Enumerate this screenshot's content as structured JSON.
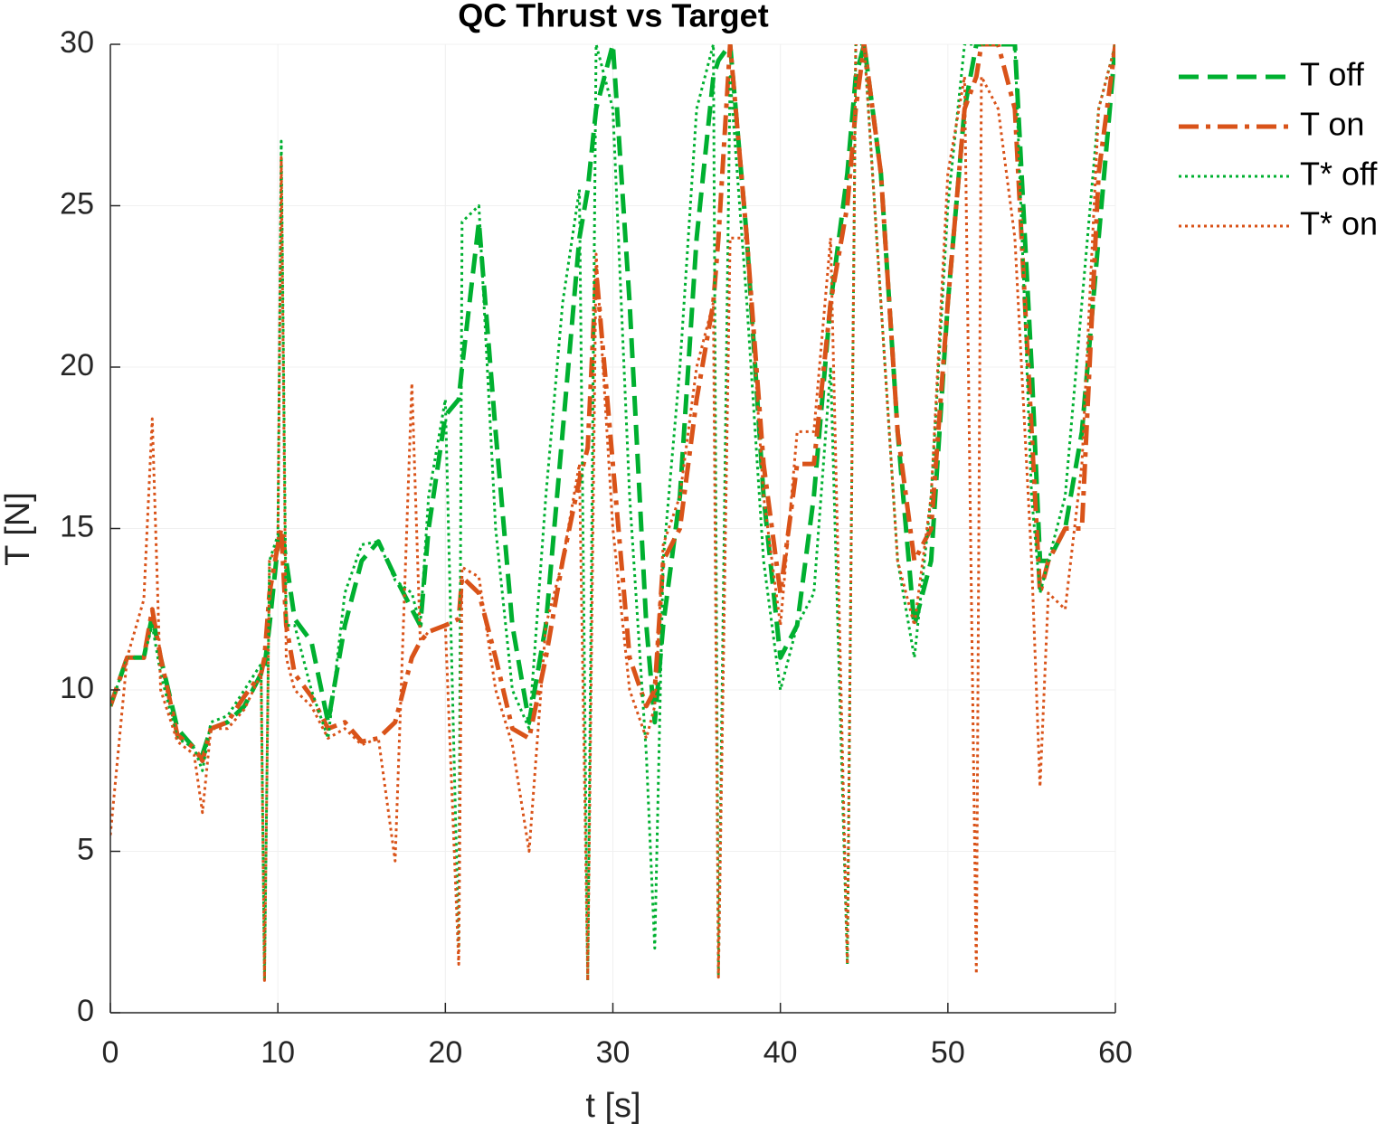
{
  "chart_data": {
    "type": "line",
    "title": "QC Thrust vs Target",
    "x_label": "t [s]",
    "y_label": "T [N]",
    "x": [
      0,
      1,
      2,
      2.5,
      3,
      4,
      5,
      5.5,
      6,
      7,
      8,
      9,
      9.2,
      9.5,
      10,
      10.2,
      10.5,
      11,
      12,
      13,
      14,
      15,
      16,
      17,
      18,
      18.5,
      19,
      20,
      20.8,
      21,
      22,
      23,
      24,
      25,
      26,
      27,
      28,
      28.5,
      29,
      30,
      31,
      32,
      32.5,
      33,
      34,
      35,
      36,
      36.3,
      37,
      38,
      39,
      40,
      41,
      42,
      43,
      44,
      44.5,
      45,
      46,
      47,
      48,
      49,
      50,
      51,
      51.7,
      52,
      53,
      54,
      55,
      55.5,
      56,
      57,
      58,
      59,
      60
    ],
    "series": [
      {
        "name": "T off",
        "color": "#00b030",
        "linestyle": "dashed",
        "linewidth": 5,
        "values": [
          9.5,
          11,
          11,
          12.3,
          11,
          8.8,
          8.2,
          8,
          8.8,
          9,
          9.5,
          10.5,
          10.7,
          12,
          14.5,
          15,
          14,
          12.2,
          11.5,
          9,
          12,
          14,
          14.6,
          13.5,
          12.5,
          12,
          15,
          18.5,
          19,
          20,
          24.5,
          18,
          12,
          9,
          12,
          18,
          24,
          25.5,
          28,
          30,
          22,
          12,
          9,
          12,
          16,
          24,
          29,
          29.5,
          30,
          24,
          16,
          11,
          12,
          16,
          22,
          26,
          29,
          30,
          26,
          18,
          12,
          14,
          22,
          28,
          30,
          30,
          30,
          30,
          20,
          14,
          14,
          15,
          18,
          24,
          30
        ]
      },
      {
        "name": "T on",
        "color": "#d95319",
        "linestyle": "dashdot",
        "linewidth": 5,
        "values": [
          9.5,
          11,
          11,
          12.5,
          11,
          8.6,
          8.2,
          7.8,
          8.8,
          9,
          9.8,
          10.5,
          11,
          13,
          14.5,
          15,
          12,
          10.5,
          9.8,
          8.8,
          9,
          8.4,
          8.5,
          9,
          11,
          11.5,
          11.8,
          12,
          12.2,
          13.5,
          13,
          11,
          8.8,
          8.5,
          11,
          14,
          16.5,
          17.5,
          23,
          17,
          11,
          9.5,
          10,
          14,
          15,
          19,
          22,
          24,
          30,
          24,
          17,
          13,
          17,
          17,
          22,
          25,
          28,
          30,
          26,
          18,
          14,
          15,
          22,
          28,
          29,
          30,
          30,
          28,
          18,
          13,
          14,
          15,
          15,
          26,
          30
        ]
      },
      {
        "name": "T* off",
        "color": "#00b030",
        "linestyle": "dotted",
        "linewidth": 3,
        "values": [
          9.5,
          11,
          11,
          12,
          10.5,
          8.5,
          8.2,
          7.5,
          9,
          9.2,
          10,
          10.8,
          1,
          14,
          14.8,
          27,
          12,
          12,
          10,
          8.5,
          13,
          14.5,
          14.6,
          13.4,
          13,
          12,
          16,
          19,
          2,
          24.5,
          25,
          15,
          10,
          8.8,
          16,
          22,
          25.5,
          1,
          30,
          28,
          16,
          8,
          2,
          14,
          20,
          28,
          30,
          1.2,
          29,
          22,
          14,
          10,
          12,
          13,
          20,
          1.5,
          30,
          30,
          22,
          14,
          11,
          16,
          25,
          30,
          30,
          30,
          30,
          30,
          16,
          13,
          14,
          16,
          22,
          28,
          30
        ]
      },
      {
        "name": "T* on",
        "color": "#d95319",
        "linestyle": "dotted",
        "linewidth": 3,
        "values": [
          5.5,
          11,
          12.8,
          18.4,
          10,
          8.4,
          8,
          6.2,
          8.8,
          8.8,
          9.4,
          10.5,
          1,
          14,
          14.5,
          26.5,
          11,
          10,
          9.5,
          8.5,
          8.8,
          8.3,
          8.5,
          4.7,
          19.5,
          11.5,
          11.8,
          12,
          1.5,
          13.8,
          13.5,
          10,
          8.3,
          5,
          12,
          14,
          17,
          1,
          23.5,
          15,
          10,
          8.5,
          9.5,
          14.5,
          16,
          20,
          22,
          1.1,
          24,
          24,
          16,
          12,
          18,
          18,
          24,
          1.5,
          30,
          30,
          22,
          14,
          12,
          16,
          26,
          29,
          1.2,
          29,
          28,
          24,
          14,
          7,
          13,
          12.5,
          17,
          28,
          30
        ]
      }
    ],
    "xlim": [
      0,
      60
    ],
    "ylim": [
      0,
      30
    ],
    "xticks": [
      0,
      10,
      20,
      30,
      40,
      50,
      60
    ],
    "yticks": [
      0,
      5,
      10,
      15,
      20,
      25,
      30
    ],
    "grid": true,
    "legend": "outside-right-top"
  }
}
